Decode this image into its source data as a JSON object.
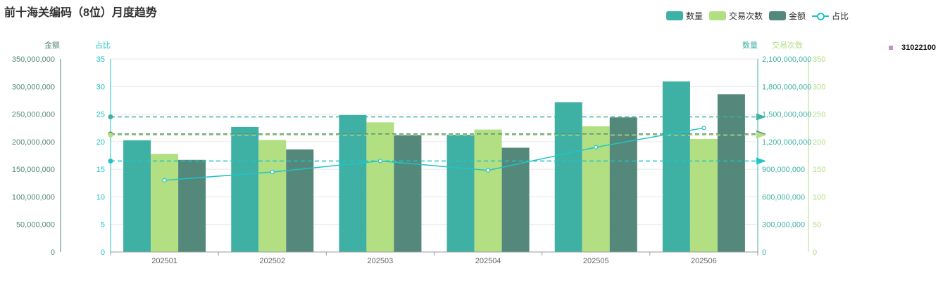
{
  "title": "前十海关编码（8位）月度趋势",
  "legend": [
    {
      "label": "数量",
      "color": "#3fb1a4",
      "kind": "bar"
    },
    {
      "label": "交易次数",
      "color": "#b2df82",
      "kind": "bar"
    },
    {
      "label": "金额",
      "color": "#53887a",
      "kind": "bar"
    },
    {
      "label": "占比",
      "color": "#20c5c5",
      "kind": "line"
    }
  ],
  "side_tag": "31022100",
  "chart_data": {
    "type": "bar",
    "categories": [
      "202501",
      "202502",
      "202503",
      "202504",
      "202505",
      "202506"
    ],
    "series": [
      {
        "name": "数量",
        "axis": "数量",
        "values": [
          1215000000,
          1360000000,
          1490000000,
          1275000000,
          1630000000,
          1855000000
        ]
      },
      {
        "name": "交易次数",
        "axis": "交易次数",
        "values": [
          178,
          203,
          235,
          222,
          228,
          205
        ]
      },
      {
        "name": "金额",
        "axis": "金额",
        "values": [
          167000000,
          186000000,
          212000000,
          189000000,
          244000000,
          286000000
        ]
      },
      {
        "name": "占比",
        "axis": "占比",
        "type": "line",
        "values": [
          13,
          14.5,
          16.5,
          14.8,
          19,
          22.5
        ]
      }
    ],
    "axes": {
      "金额": {
        "label": "金额",
        "ticks": [
          "350,000,000",
          "300,000,000",
          "250,000,000",
          "200,000,000",
          "150,000,000",
          "100,000,000",
          "50,000,000",
          "0"
        ],
        "range": [
          0,
          350000000
        ]
      },
      "占比": {
        "label": "占比",
        "ticks": [
          "35",
          "30",
          "25",
          "20",
          "15",
          "10",
          "5",
          "0"
        ],
        "range": [
          0,
          35
        ]
      },
      "数量": {
        "label": "数量",
        "ticks": [
          "2,100,000,000",
          "1,800,000,000",
          "1,500,000,000",
          "1,200,000,000",
          "900,000,000",
          "600,000,000",
          "300,000,000",
          "0"
        ],
        "range": [
          0,
          2100000000
        ]
      },
      "交易次数": {
        "label": "交易次数",
        "ticks": [
          "350",
          "300",
          "250",
          "200",
          "150",
          "100",
          "50",
          "0"
        ],
        "range": [
          0,
          350
        ]
      }
    },
    "mark_lines": [
      {
        "series": "数量",
        "value": 1470000000,
        "color": "#3fb1a4"
      },
      {
        "series": "金额",
        "value": 214000000,
        "color": "#53887a"
      },
      {
        "series": "交易次数",
        "value": 212,
        "color": "#b2df82"
      },
      {
        "series": "占比",
        "value": 16.5,
        "color": "#20c5c5"
      }
    ],
    "grid": true,
    "legend_position": "top-right"
  }
}
